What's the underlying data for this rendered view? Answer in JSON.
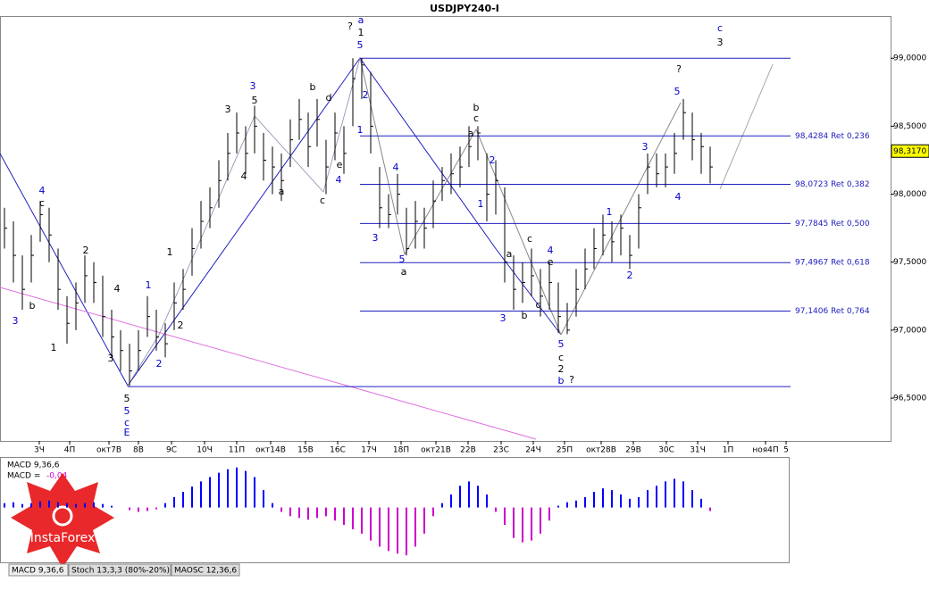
{
  "chart_data": [
    {
      "type": "ohlc",
      "title": "USDJPY240-I",
      "color": "#000000",
      "x": [
        0,
        1,
        2,
        3,
        4,
        5,
        6,
        7,
        8,
        9,
        10,
        11,
        12,
        13,
        14,
        15,
        16,
        17,
        18,
        19,
        20,
        21,
        22,
        23,
        24,
        25,
        26,
        27,
        28,
        29,
        30,
        31,
        32,
        33,
        34,
        35,
        36,
        37,
        38,
        39,
        40,
        41,
        42,
        43,
        44,
        45,
        46,
        47,
        48,
        49,
        50,
        51,
        52,
        53,
        54,
        55,
        56,
        57,
        58,
        59,
        60,
        61,
        62,
        63,
        64,
        65,
        66,
        67,
        68,
        69,
        70,
        71,
        72,
        73,
        74,
        75,
        76,
        77,
        78,
        79
      ],
      "high": [
        97.9,
        97.8,
        97.55,
        97.7,
        97.95,
        97.9,
        97.6,
        97.25,
        97.35,
        97.55,
        97.5,
        97.4,
        97.15,
        97.0,
        96.9,
        97.0,
        97.25,
        97.15,
        97.05,
        97.35,
        97.45,
        97.75,
        97.95,
        98.05,
        98.25,
        98.45,
        98.6,
        98.5,
        98.65,
        98.45,
        98.35,
        98.3,
        98.55,
        98.7,
        98.6,
        98.7,
        98.4,
        98.6,
        98.5,
        99.0,
        99.0,
        98.9,
        98.2,
        98.0,
        98.15,
        97.9,
        97.95,
        97.9,
        98.1,
        98.2,
        98.3,
        98.35,
        98.5,
        98.5,
        98.3,
        98.25,
        98.05,
        97.55,
        97.5,
        97.6,
        97.45,
        97.5,
        97.35,
        97.2,
        97.45,
        97.6,
        97.75,
        97.85,
        97.8,
        97.85,
        97.7,
        98.0,
        98.3,
        98.3,
        98.3,
        98.45,
        98.7,
        98.6,
        98.45,
        98.35
      ],
      "low": [
        97.6,
        97.35,
        97.15,
        97.35,
        97.65,
        97.5,
        97.15,
        96.9,
        97.0,
        97.2,
        97.2,
        96.95,
        96.8,
        96.7,
        96.59,
        96.7,
        96.95,
        96.85,
        96.8,
        97.0,
        97.15,
        97.4,
        97.6,
        97.75,
        97.9,
        98.1,
        98.3,
        98.15,
        98.3,
        98.1,
        98.0,
        97.95,
        98.2,
        98.4,
        98.2,
        98.35,
        98.0,
        98.25,
        98.15,
        98.5,
        98.7,
        98.3,
        97.75,
        97.75,
        97.85,
        97.55,
        97.6,
        97.6,
        97.75,
        97.95,
        98.0,
        98.05,
        98.2,
        98.25,
        97.8,
        97.85,
        97.35,
        97.15,
        97.2,
        97.25,
        97.1,
        97.15,
        96.98,
        96.97,
        97.1,
        97.3,
        97.45,
        97.55,
        97.5,
        97.55,
        97.45,
        97.6,
        98.0,
        98.05,
        98.05,
        98.15,
        98.4,
        98.25,
        98.15,
        98.08
      ],
      "close": [
        97.75,
        97.55,
        97.3,
        97.55,
        97.85,
        97.7,
        97.3,
        97.05,
        97.2,
        97.4,
        97.35,
        97.1,
        96.95,
        96.85,
        96.7,
        96.85,
        97.1,
        96.95,
        96.9,
        97.2,
        97.3,
        97.6,
        97.8,
        97.9,
        98.1,
        98.3,
        98.45,
        98.3,
        98.5,
        98.25,
        98.2,
        98.1,
        98.4,
        98.55,
        98.35,
        98.55,
        98.2,
        98.45,
        98.3,
        98.85,
        98.95,
        98.5,
        97.9,
        97.85,
        98.0,
        97.6,
        97.8,
        97.75,
        97.95,
        98.1,
        98.15,
        98.2,
        98.35,
        98.45,
        98.0,
        98.1,
        97.5,
        97.3,
        97.35,
        97.4,
        97.25,
        97.35,
        97.1,
        97.0,
        97.3,
        97.45,
        97.6,
        97.7,
        97.65,
        97.75,
        97.55,
        97.9,
        98.2,
        98.15,
        98.2,
        98.3,
        98.6,
        98.4,
        98.35,
        98.2
      ],
      "xlim": [
        -0.5,
        99.2
      ],
      "ylim": [
        96.185,
        99.31
      ],
      "yticks": [
        {
          "value": 99,
          "label": "99,0000"
        },
        {
          "value": 98.5,
          "label": "98,5000"
        },
        {
          "value": 98,
          "label": "98,0000"
        },
        {
          "value": 97.5,
          "label": "97,5000"
        },
        {
          "value": 97,
          "label": "97,0000"
        },
        {
          "value": 96.5,
          "label": "96,5000"
        }
      ],
      "xticks": [
        {
          "value": 3.9,
          "label": "3Ч"
        },
        {
          "value": 7.3,
          "label": "4П"
        },
        {
          "value": 11.7,
          "label": "окт7В"
        },
        {
          "value": 15.0,
          "label": "8В"
        },
        {
          "value": 18.7,
          "label": "9С"
        },
        {
          "value": 22.4,
          "label": "10Ч"
        },
        {
          "value": 26.0,
          "label": "11П"
        },
        {
          "value": 29.8,
          "label": "окт14В"
        },
        {
          "value": 33.7,
          "label": "15В"
        },
        {
          "value": 37.3,
          "label": "16С"
        },
        {
          "value": 40.8,
          "label": "17Ч"
        },
        {
          "value": 44.4,
          "label": "18П"
        },
        {
          "value": 48.3,
          "label": "окт21В"
        },
        {
          "value": 51.9,
          "label": "22В"
        },
        {
          "value": 55.6,
          "label": "23С"
        },
        {
          "value": 59.2,
          "label": "24Ч"
        },
        {
          "value": 62.7,
          "label": "25П"
        },
        {
          "value": 66.8,
          "label": "окт28В"
        },
        {
          "value": 70.4,
          "label": "29В"
        },
        {
          "value": 74.1,
          "label": "30С"
        },
        {
          "value": 77.6,
          "label": "31Ч"
        },
        {
          "value": 81.0,
          "label": "1П"
        },
        {
          "value": 85.2,
          "label": "ноя4П"
        },
        {
          "value": 87.5,
          "label": "5"
        }
      ],
      "levels": [
        {
          "value": 98.4284,
          "label": "98,4284 Ret 0,236"
        },
        {
          "value": 98.0723,
          "label": "98,0723 Ret 0,382"
        },
        {
          "value": 97.7845,
          "label": "97,7845 Ret 0,500"
        },
        {
          "value": 97.4967,
          "label": "97,4967 Ret 0,618"
        },
        {
          "value": 97.1406,
          "label": "97,1406 Ret 0,764"
        }
      ],
      "hlines": [
        99.0,
        96.585
      ],
      "last_price": {
        "value": 98.317,
        "label": "98,3170"
      },
      "annotations": [
        {
          "text": "?",
          "color": "#000"
        },
        {
          "text": "a",
          "color": "#00c"
        },
        {
          "text": "1",
          "color": "#000"
        },
        {
          "text": "5",
          "color": "#00c"
        },
        {
          "text": "c",
          "color": "#00c"
        },
        {
          "text": "3",
          "color": "#000"
        },
        {
          "text": "?",
          "color": "#000"
        },
        {
          "text": "5",
          "color": "#00c"
        },
        {
          "text": "3",
          "color": "#00c"
        },
        {
          "text": "5",
          "color": "#000"
        },
        {
          "text": "3",
          "color": "#000"
        },
        {
          "text": "4",
          "color": "#000"
        },
        {
          "text": "b",
          "color": "#000"
        },
        {
          "text": "d",
          "color": "#000"
        },
        {
          "text": "a",
          "color": "#000"
        },
        {
          "text": "c",
          "color": "#000"
        },
        {
          "text": "e",
          "color": "#000"
        },
        {
          "text": "4",
          "color": "#00c"
        },
        {
          "text": "2",
          "color": "#00c"
        },
        {
          "text": "1",
          "color": "#00c"
        },
        {
          "text": "4",
          "color": "#00c"
        },
        {
          "text": "3",
          "color": "#00c"
        },
        {
          "text": "5",
          "color": "#00c"
        },
        {
          "text": "a",
          "color": "#000"
        },
        {
          "text": "b",
          "color": "#000"
        },
        {
          "text": "c",
          "color": "#000"
        },
        {
          "text": "a",
          "color": "#000"
        },
        {
          "text": "2",
          "color": "#00c"
        },
        {
          "text": "1",
          "color": "#00c"
        },
        {
          "text": "a",
          "color": "#000"
        },
        {
          "text": "c",
          "color": "#000"
        },
        {
          "text": "4",
          "color": "#00c"
        },
        {
          "text": "e",
          "color": "#000"
        },
        {
          "text": "d",
          "color": "#000"
        },
        {
          "text": "b",
          "color": "#000"
        },
        {
          "text": "3",
          "color": "#00c"
        },
        {
          "text": "5",
          "color": "#00c"
        },
        {
          "text": "c",
          "color": "#000"
        },
        {
          "text": "2",
          "color": "#000"
        },
        {
          "text": "b",
          "color": "#00c"
        },
        {
          "text": "?",
          "color": "#000"
        },
        {
          "text": "1",
          "color": "#00c"
        },
        {
          "text": "2",
          "color": "#00c"
        },
        {
          "text": "3",
          "color": "#00c"
        },
        {
          "text": "4",
          "color": "#00c"
        },
        {
          "text": "4",
          "color": "#00c"
        },
        {
          "text": "c",
          "color": "#000"
        },
        {
          "text": "2",
          "color": "#000"
        },
        {
          "text": "4",
          "color": "#000"
        },
        {
          "text": "1",
          "color": "#00c"
        },
        {
          "text": "2",
          "color": "#000"
        },
        {
          "text": "1",
          "color": "#000"
        },
        {
          "text": "2",
          "color": "#00c"
        },
        {
          "text": "3",
          "color": "#000"
        },
        {
          "text": "5",
          "color": "#000"
        },
        {
          "text": "5",
          "color": "#00c"
        },
        {
          "text": "c",
          "color": "#00c"
        },
        {
          "text": "E",
          "color": "#00c"
        },
        {
          "text": "3",
          "color": "#00c"
        },
        {
          "text": "b",
          "color": "#000"
        },
        {
          "text": "1",
          "color": "#000"
        }
      ]
    },
    {
      "type": "histogram",
      "title": "MACD 9,36,6",
      "current_label": "MACD =",
      "current": "-0,04",
      "values": [
        0.05,
        0.06,
        0.04,
        0.05,
        0.07,
        0.08,
        0.06,
        0.05,
        0.04,
        0.05,
        0.06,
        0.04,
        0.02,
        0.0,
        -0.03,
        -0.05,
        -0.04,
        -0.02,
        0.05,
        0.12,
        0.18,
        0.24,
        0.3,
        0.35,
        0.4,
        0.44,
        0.46,
        0.42,
        0.35,
        0.2,
        0.05,
        -0.05,
        -0.1,
        -0.12,
        -0.14,
        -0.12,
        -0.1,
        -0.15,
        -0.2,
        -0.25,
        -0.3,
        -0.38,
        -0.45,
        -0.5,
        -0.53,
        -0.55,
        -0.45,
        -0.3,
        -0.1,
        0.05,
        0.15,
        0.25,
        0.3,
        0.25,
        0.15,
        -0.05,
        -0.2,
        -0.35,
        -0.4,
        -0.38,
        -0.3,
        -0.15,
        0.02,
        0.06,
        0.08,
        0.12,
        0.18,
        0.22,
        0.2,
        0.15,
        0.1,
        0.12,
        0.2,
        0.25,
        0.3,
        0.33,
        0.3,
        0.2,
        0.1,
        -0.04
      ],
      "ylim": [
        -0.62,
        0.56
      ],
      "colors": {
        "positive": "#0000ff",
        "negative": "#cc00cc"
      }
    }
  ],
  "tabs": [
    "MACD 9,36,6",
    "Stoch 13,3,3 (80%-20%)",
    "MAOSC 12,36,6"
  ],
  "logo": "InstaForex"
}
